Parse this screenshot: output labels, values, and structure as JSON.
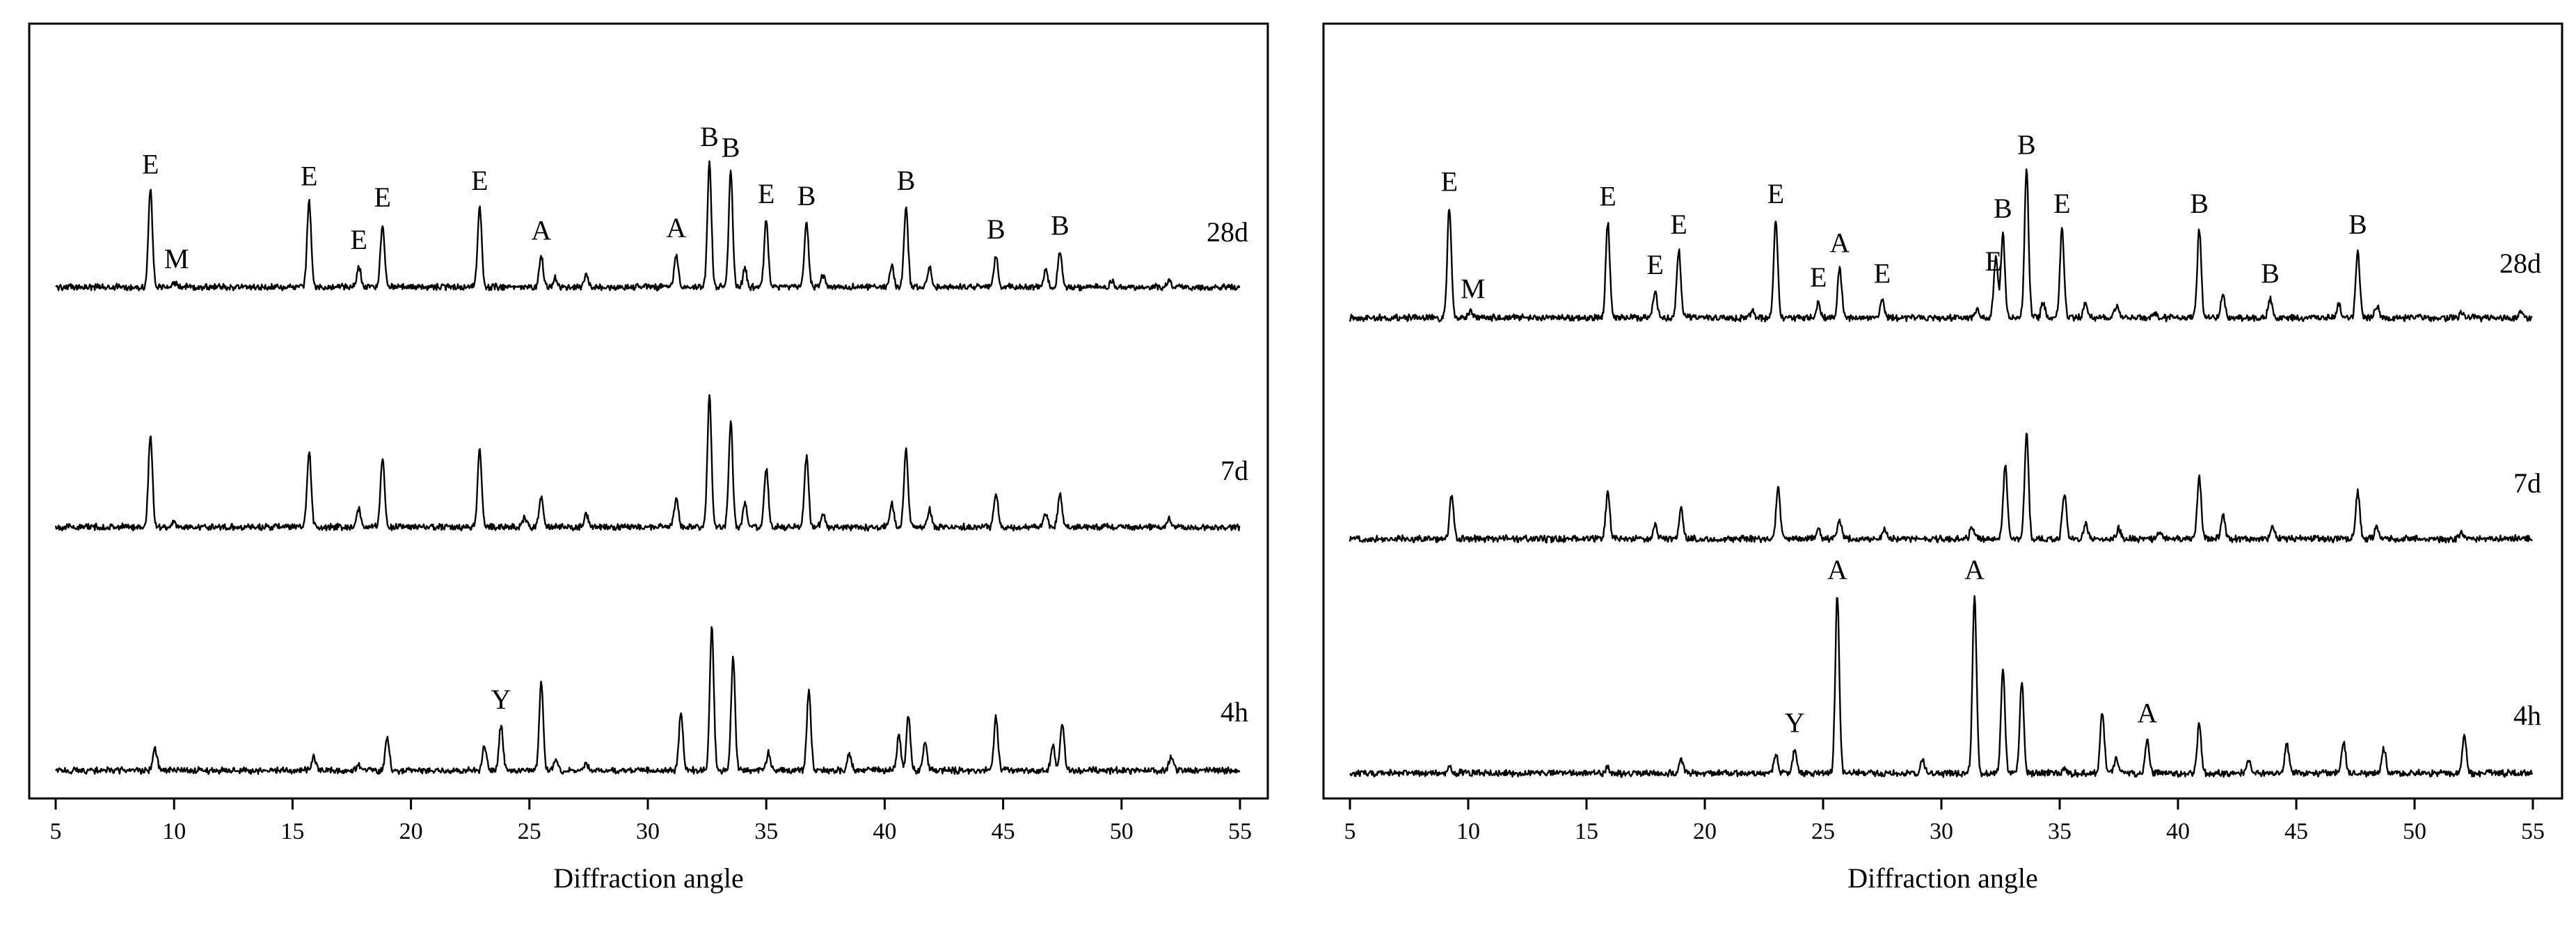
{
  "chart_data": [
    {
      "type": "line",
      "panel": "left",
      "xlabel": "Diffraction angle",
      "ylabel": "",
      "xlim": [
        5,
        55
      ],
      "xticks": [
        5,
        10,
        15,
        20,
        25,
        30,
        35,
        40,
        45,
        50,
        55
      ],
      "grid": false,
      "y_axis_ticks": false,
      "series": [
        {
          "name": "28d",
          "baseline": 0.42,
          "peaks": [
            [
              9.0,
              0.82
            ],
            [
              10.0,
              0.04
            ],
            [
              15.7,
              0.72
            ],
            [
              17.8,
              0.18
            ],
            [
              18.8,
              0.54
            ],
            [
              22.9,
              0.68
            ],
            [
              25.5,
              0.26
            ],
            [
              26.1,
              0.08
            ],
            [
              27.4,
              0.1
            ],
            [
              31.2,
              0.28
            ],
            [
              32.6,
              1.05
            ],
            [
              33.5,
              0.96
            ],
            [
              34.1,
              0.15
            ],
            [
              35.0,
              0.57
            ],
            [
              36.7,
              0.55
            ],
            [
              37.4,
              0.1
            ],
            [
              40.3,
              0.18
            ],
            [
              40.9,
              0.68
            ],
            [
              41.9,
              0.16
            ],
            [
              44.7,
              0.27
            ],
            [
              46.8,
              0.15
            ],
            [
              47.4,
              0.3
            ],
            [
              49.6,
              0.05
            ],
            [
              52.0,
              0.06
            ]
          ]
        },
        {
          "name": "7d",
          "baseline": 0.42,
          "peaks": [
            [
              9.0,
              0.78
            ],
            [
              10.0,
              0.04
            ],
            [
              15.7,
              0.65
            ],
            [
              17.8,
              0.15
            ],
            [
              18.8,
              0.58
            ],
            [
              22.9,
              0.66
            ],
            [
              24.8,
              0.08
            ],
            [
              25.5,
              0.25
            ],
            [
              27.4,
              0.11
            ],
            [
              31.2,
              0.25
            ],
            [
              32.6,
              1.1
            ],
            [
              33.5,
              0.88
            ],
            [
              34.1,
              0.2
            ],
            [
              35.0,
              0.5
            ],
            [
              36.7,
              0.6
            ],
            [
              37.4,
              0.1
            ],
            [
              40.3,
              0.2
            ],
            [
              40.9,
              0.65
            ],
            [
              41.9,
              0.15
            ],
            [
              44.7,
              0.3
            ],
            [
              46.8,
              0.12
            ],
            [
              47.4,
              0.29
            ],
            [
              52.0,
              0.08
            ]
          ]
        },
        {
          "name": "4h",
          "baseline": 0.42,
          "peaks": [
            [
              9.2,
              0.18
            ],
            [
              15.9,
              0.12
            ],
            [
              17.8,
              0.05
            ],
            [
              19.0,
              0.28
            ],
            [
              23.1,
              0.2
            ],
            [
              23.8,
              0.38
            ],
            [
              25.5,
              0.75
            ],
            [
              26.1,
              0.08
            ],
            [
              27.4,
              0.05
            ],
            [
              31.4,
              0.5
            ],
            [
              32.7,
              1.2
            ],
            [
              33.6,
              0.95
            ],
            [
              35.1,
              0.15
            ],
            [
              36.8,
              0.68
            ],
            [
              38.5,
              0.15
            ],
            [
              40.6,
              0.3
            ],
            [
              41.0,
              0.45
            ],
            [
              41.7,
              0.25
            ],
            [
              44.7,
              0.45
            ],
            [
              47.1,
              0.2
            ],
            [
              47.5,
              0.4
            ],
            [
              52.1,
              0.12
            ]
          ]
        }
      ],
      "annotations": [
        {
          "series": "28d",
          "x": 9.0,
          "label": "E"
        },
        {
          "series": "28d",
          "x": 10.1,
          "label": "M"
        },
        {
          "series": "28d",
          "x": 15.7,
          "label": "E"
        },
        {
          "series": "28d",
          "x": 17.8,
          "label": "E"
        },
        {
          "series": "28d",
          "x": 18.8,
          "label": "E"
        },
        {
          "series": "28d",
          "x": 22.9,
          "label": "E"
        },
        {
          "series": "28d",
          "x": 25.5,
          "label": "A"
        },
        {
          "series": "28d",
          "x": 31.2,
          "label": "A"
        },
        {
          "series": "28d",
          "x": 32.6,
          "label": "B"
        },
        {
          "series": "28d",
          "x": 33.5,
          "label": "B"
        },
        {
          "series": "28d",
          "x": 35.0,
          "label": "E"
        },
        {
          "series": "28d",
          "x": 36.7,
          "label": "B"
        },
        {
          "series": "28d",
          "x": 40.9,
          "label": "B"
        },
        {
          "series": "28d",
          "x": 44.7,
          "label": "B"
        },
        {
          "series": "28d",
          "x": 47.4,
          "label": "B"
        },
        {
          "series": "4h",
          "x": 23.8,
          "label": "Y"
        }
      ]
    },
    {
      "type": "line",
      "panel": "right",
      "xlabel": "Diffraction angle",
      "ylabel": "",
      "xlim": [
        5,
        55
      ],
      "xticks": [
        5,
        10,
        15,
        20,
        25,
        30,
        35,
        40,
        45,
        50,
        55
      ],
      "grid": false,
      "y_axis_ticks": false,
      "series": [
        {
          "name": "28d",
          "baseline": 0.48,
          "peaks": [
            [
              9.2,
              0.9
            ],
            [
              10.1,
              0.05
            ],
            [
              15.9,
              0.78
            ],
            [
              17.9,
              0.22
            ],
            [
              18.9,
              0.55
            ],
            [
              22.0,
              0.05
            ],
            [
              23.0,
              0.8
            ],
            [
              24.8,
              0.12
            ],
            [
              25.7,
              0.4
            ],
            [
              27.5,
              0.15
            ],
            [
              31.5,
              0.08
            ],
            [
              32.3,
              0.5
            ],
            [
              32.6,
              0.68
            ],
            [
              33.6,
              1.2
            ],
            [
              34.3,
              0.12
            ],
            [
              35.1,
              0.72
            ],
            [
              36.1,
              0.12
            ],
            [
              37.4,
              0.1
            ],
            [
              39.0,
              0.05
            ],
            [
              40.9,
              0.72
            ],
            [
              41.9,
              0.2
            ],
            [
              43.9,
              0.15
            ],
            [
              46.8,
              0.1
            ],
            [
              47.6,
              0.55
            ],
            [
              48.4,
              0.1
            ],
            [
              52.0,
              0.05
            ],
            [
              54.5,
              0.05
            ]
          ]
        },
        {
          "name": "7d",
          "baseline": 0.5,
          "peaks": [
            [
              9.3,
              0.35
            ],
            [
              15.9,
              0.38
            ],
            [
              17.9,
              0.12
            ],
            [
              19.0,
              0.25
            ],
            [
              23.1,
              0.42
            ],
            [
              24.8,
              0.08
            ],
            [
              25.7,
              0.15
            ],
            [
              27.6,
              0.08
            ],
            [
              31.3,
              0.1
            ],
            [
              32.7,
              0.6
            ],
            [
              33.6,
              0.85
            ],
            [
              35.2,
              0.38
            ],
            [
              36.1,
              0.12
            ],
            [
              37.5,
              0.08
            ],
            [
              39.2,
              0.05
            ],
            [
              40.9,
              0.5
            ],
            [
              41.9,
              0.2
            ],
            [
              44.0,
              0.1
            ],
            [
              47.6,
              0.38
            ],
            [
              48.4,
              0.1
            ],
            [
              52.0,
              0.05
            ]
          ]
        },
        {
          "name": "4h",
          "baseline": 0.5,
          "peaks": [
            [
              9.2,
              0.05
            ],
            [
              15.9,
              0.05
            ],
            [
              19.0,
              0.12
            ],
            [
              23.0,
              0.15
            ],
            [
              23.8,
              0.2
            ],
            [
              25.6,
              1.45
            ],
            [
              29.2,
              0.12
            ],
            [
              31.4,
              1.45
            ],
            [
              32.6,
              0.85
            ],
            [
              33.4,
              0.75
            ],
            [
              35.2,
              0.05
            ],
            [
              36.8,
              0.5
            ],
            [
              37.4,
              0.12
            ],
            [
              38.7,
              0.28
            ],
            [
              40.9,
              0.4
            ],
            [
              43.0,
              0.1
            ],
            [
              44.6,
              0.25
            ],
            [
              47.0,
              0.25
            ],
            [
              48.7,
              0.2
            ],
            [
              52.1,
              0.3
            ]
          ]
        }
      ],
      "annotations": [
        {
          "series": "28d",
          "x": 9.2,
          "label": "E"
        },
        {
          "series": "28d",
          "x": 10.2,
          "label": "M"
        },
        {
          "series": "28d",
          "x": 15.9,
          "label": "E"
        },
        {
          "series": "28d",
          "x": 17.9,
          "label": "E"
        },
        {
          "series": "28d",
          "x": 18.9,
          "label": "E"
        },
        {
          "series": "28d",
          "x": 23.0,
          "label": "E"
        },
        {
          "series": "28d",
          "x": 24.8,
          "label": "E"
        },
        {
          "series": "28d",
          "x": 25.7,
          "label": "A"
        },
        {
          "series": "28d",
          "x": 27.5,
          "label": "E"
        },
        {
          "series": "28d",
          "x": 32.2,
          "label": "E"
        },
        {
          "series": "28d",
          "x": 32.6,
          "label": "B"
        },
        {
          "series": "28d",
          "x": 33.6,
          "label": "B"
        },
        {
          "series": "28d",
          "x": 35.1,
          "label": "E"
        },
        {
          "series": "28d",
          "x": 40.9,
          "label": "B"
        },
        {
          "series": "28d",
          "x": 43.9,
          "label": "B"
        },
        {
          "series": "28d",
          "x": 47.6,
          "label": "B"
        },
        {
          "series": "4h",
          "x": 23.8,
          "label": "Y"
        },
        {
          "series": "4h",
          "x": 25.6,
          "label": "A"
        },
        {
          "series": "4h",
          "x": 31.4,
          "label": "A"
        },
        {
          "series": "4h",
          "x": 38.7,
          "label": "A"
        }
      ]
    }
  ]
}
